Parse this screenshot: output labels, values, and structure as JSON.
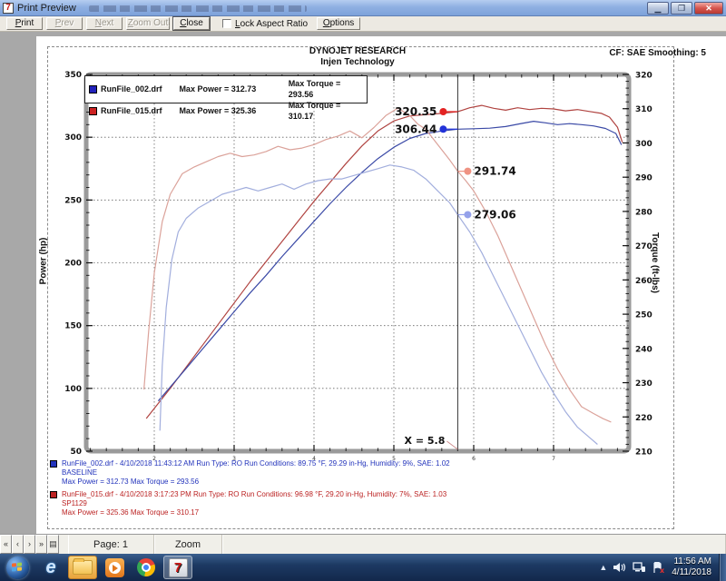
{
  "window": {
    "title": "Print Preview"
  },
  "toolbar": {
    "print": "Print",
    "prev": "Prev",
    "next": "Next",
    "zoom_out": "Zoom Out",
    "close": "Close",
    "lock_aspect": "Lock Aspect Ratio",
    "options": "Options"
  },
  "statusbar": {
    "nav_first": "«",
    "nav_prev": "‹",
    "nav_next": "›",
    "nav_last": "»",
    "nav_page_icon": "▤",
    "page": "Page: 1",
    "zoom": "Zoom"
  },
  "taskbar": {
    "time": "11:56 AM",
    "date": "4/11/2018"
  },
  "report": {
    "company": "DYNOJET RESEARCH",
    "subtitle": "Injen Technology",
    "correction": "CF: SAE  Smoothing: 5",
    "legend": [
      {
        "color": "#2222bb",
        "file": "RunFile_002.drf",
        "max_power": "Max Power = 312.73",
        "max_torque": "Max Torque = 293.56"
      },
      {
        "color": "#cc2222",
        "file": "RunFile_015.drf",
        "max_power": "Max Power = 325.36",
        "max_torque": "Max Torque = 310.17"
      }
    ],
    "runs": [
      {
        "color": "#2233bb",
        "line1": "RunFile_002.drf - 4/10/2018 11:43:12 AM  Run Type: RO  Run Conditions: 89.75 °F, 29.29 in-Hg,  Humidity:  9%, SAE: 1.02",
        "line2": "BASELINE",
        "line3": "Max Power = 312.73  Max Torque = 293.56"
      },
      {
        "color": "#bb2222",
        "line1": "RunFile_015.drf - 4/10/2018 3:17:23 PM  Run Type: RO  Run Conditions: 96.98 °F, 29.20 in-Hg,  Humidity:  7%, SAE: 1.03",
        "line2": "SP1129",
        "line3": "Max Power = 325.36  Max Torque = 310.17"
      }
    ]
  },
  "chart_data": {
    "type": "line",
    "title": "DYNOJET RESEARCH - Injen Technology",
    "ylabel_left": "Power (hp)",
    "ylabel_right": "Torque (ft-lbs)",
    "x_axis": {
      "min": 1.15,
      "max": 7.95,
      "major_ticks": [
        2,
        3,
        4,
        5,
        6,
        7
      ],
      "tick_labels": [
        "2",
        "3",
        "4",
        "5",
        "6",
        "7"
      ],
      "minor_step": 0.2
    },
    "power_axis": {
      "min": 50,
      "max": 350,
      "major_ticks": [
        350,
        300,
        250,
        200,
        150,
        100,
        50
      ],
      "minor_step": 10
    },
    "torque_axis": {
      "min": 210,
      "max": 320,
      "major_ticks": [
        320,
        310,
        300,
        290,
        280,
        270,
        260,
        250,
        240,
        230,
        220,
        210
      ],
      "minor_step": 2
    },
    "grid": {
      "vertical_at": [
        2,
        3,
        4,
        5,
        6,
        7
      ],
      "horizontal_power_at": [
        300,
        250,
        200,
        150,
        100
      ]
    },
    "cursor": {
      "x": 5.8,
      "label": "X = 5.8"
    },
    "markers": [
      {
        "label": "320.35",
        "axis": "power",
        "value": 320.35,
        "side": "left",
        "color": "#e32222"
      },
      {
        "label": "306.44",
        "axis": "power",
        "value": 306.44,
        "side": "left",
        "color": "#2233d8"
      },
      {
        "label": "291.74",
        "axis": "torque",
        "value": 291.74,
        "side": "right",
        "color": "#ef9383"
      },
      {
        "label": "279.06",
        "axis": "torque",
        "value": 279.06,
        "side": "right",
        "color": "#94a1ea"
      }
    ],
    "series": [
      {
        "name": "RunFile_015.drf Power",
        "axis": "power",
        "color": "#b04340",
        "points": [
          [
            1.9,
            76
          ],
          [
            2.05,
            88
          ],
          [
            2.2,
            100
          ],
          [
            2.4,
            117
          ],
          [
            2.6,
            134
          ],
          [
            2.8,
            151
          ],
          [
            3.0,
            168
          ],
          [
            3.2,
            185
          ],
          [
            3.4,
            201
          ],
          [
            3.6,
            217
          ],
          [
            3.8,
            233
          ],
          [
            4.0,
            249
          ],
          [
            4.2,
            264
          ],
          [
            4.4,
            279
          ],
          [
            4.6,
            293
          ],
          [
            4.8,
            305
          ],
          [
            5.0,
            313
          ],
          [
            5.2,
            317
          ],
          [
            5.4,
            318
          ],
          [
            5.6,
            319
          ],
          [
            5.8,
            320.35
          ],
          [
            5.95,
            323.5
          ],
          [
            6.1,
            325.36
          ],
          [
            6.25,
            323
          ],
          [
            6.4,
            321.5
          ],
          [
            6.55,
            323.5
          ],
          [
            6.7,
            322
          ],
          [
            6.85,
            323
          ],
          [
            7.0,
            322.5
          ],
          [
            7.15,
            321
          ],
          [
            7.3,
            322
          ],
          [
            7.45,
            320.5
          ],
          [
            7.6,
            319
          ],
          [
            7.7,
            316
          ],
          [
            7.8,
            308
          ],
          [
            7.86,
            296
          ]
        ]
      },
      {
        "name": "RunFile_002.drf Power",
        "axis": "power",
        "color": "#3a49a6",
        "points": [
          [
            2.05,
            90
          ],
          [
            2.2,
            101
          ],
          [
            2.4,
            116
          ],
          [
            2.6,
            131
          ],
          [
            2.8,
            146
          ],
          [
            3.0,
            161
          ],
          [
            3.2,
            176
          ],
          [
            3.4,
            190
          ],
          [
            3.6,
            205
          ],
          [
            3.8,
            219
          ],
          [
            4.0,
            233
          ],
          [
            4.2,
            247
          ],
          [
            4.4,
            260
          ],
          [
            4.6,
            272
          ],
          [
            4.8,
            283
          ],
          [
            5.0,
            292
          ],
          [
            5.2,
            299
          ],
          [
            5.4,
            303
          ],
          [
            5.6,
            305
          ],
          [
            5.8,
            306.44
          ],
          [
            6.0,
            306.8
          ],
          [
            6.2,
            307.2
          ],
          [
            6.4,
            308.5
          ],
          [
            6.6,
            311
          ],
          [
            6.75,
            312.73
          ],
          [
            6.9,
            311.5
          ],
          [
            7.05,
            310
          ],
          [
            7.2,
            310.8
          ],
          [
            7.35,
            310
          ],
          [
            7.5,
            309
          ],
          [
            7.65,
            307
          ],
          [
            7.78,
            303
          ],
          [
            7.85,
            294
          ]
        ]
      },
      {
        "name": "RunFile_015.drf Torque",
        "axis": "torque",
        "color": "#dba29a",
        "points": [
          [
            1.87,
            228
          ],
          [
            1.93,
            245
          ],
          [
            2.0,
            262
          ],
          [
            2.1,
            277
          ],
          [
            2.2,
            285
          ],
          [
            2.35,
            291
          ],
          [
            2.5,
            293
          ],
          [
            2.65,
            294.5
          ],
          [
            2.8,
            296
          ],
          [
            2.95,
            297
          ],
          [
            3.1,
            296
          ],
          [
            3.25,
            296.5
          ],
          [
            3.4,
            297.5
          ],
          [
            3.55,
            299
          ],
          [
            3.7,
            298
          ],
          [
            3.85,
            298.5
          ],
          [
            4.0,
            299.5
          ],
          [
            4.15,
            301
          ],
          [
            4.3,
            302
          ],
          [
            4.45,
            303.5
          ],
          [
            4.6,
            301.5
          ],
          [
            4.75,
            304.5
          ],
          [
            4.9,
            308
          ],
          [
            5.05,
            310.17
          ],
          [
            5.2,
            308
          ],
          [
            5.3,
            305.5
          ],
          [
            5.4,
            304
          ],
          [
            5.5,
            301
          ],
          [
            5.6,
            298
          ],
          [
            5.7,
            295
          ],
          [
            5.8,
            291.74
          ],
          [
            5.9,
            289
          ],
          [
            6.0,
            286
          ],
          [
            6.15,
            280
          ],
          [
            6.3,
            273
          ],
          [
            6.45,
            265
          ],
          [
            6.6,
            257
          ],
          [
            6.75,
            249
          ],
          [
            6.9,
            241
          ],
          [
            7.05,
            234
          ],
          [
            7.2,
            228
          ],
          [
            7.35,
            223
          ],
          [
            7.5,
            221
          ],
          [
            7.62,
            219.5
          ],
          [
            7.72,
            218.5
          ]
        ]
      },
      {
        "name": "RunFile_002.drf Torque",
        "axis": "torque",
        "color": "#a2aedd",
        "points": [
          [
            2.07,
            216
          ],
          [
            2.1,
            235
          ],
          [
            2.15,
            252
          ],
          [
            2.22,
            266
          ],
          [
            2.3,
            274
          ],
          [
            2.4,
            278
          ],
          [
            2.55,
            281
          ],
          [
            2.7,
            283
          ],
          [
            2.85,
            285
          ],
          [
            3.0,
            286
          ],
          [
            3.15,
            287
          ],
          [
            3.3,
            286
          ],
          [
            3.45,
            287
          ],
          [
            3.6,
            288
          ],
          [
            3.75,
            286.5
          ],
          [
            3.9,
            288
          ],
          [
            4.05,
            289
          ],
          [
            4.2,
            289.5
          ],
          [
            4.35,
            289.5
          ],
          [
            4.5,
            290.5
          ],
          [
            4.65,
            291.5
          ],
          [
            4.8,
            292.5
          ],
          [
            4.95,
            293.56
          ],
          [
            5.1,
            293
          ],
          [
            5.25,
            292
          ],
          [
            5.4,
            289.5
          ],
          [
            5.55,
            286
          ],
          [
            5.7,
            282.5
          ],
          [
            5.8,
            279.06
          ],
          [
            5.95,
            274
          ],
          [
            6.1,
            268
          ],
          [
            6.25,
            261
          ],
          [
            6.4,
            254
          ],
          [
            6.55,
            247
          ],
          [
            6.7,
            240
          ],
          [
            6.85,
            233
          ],
          [
            7.0,
            227
          ],
          [
            7.15,
            221.5
          ],
          [
            7.3,
            217
          ],
          [
            7.45,
            214
          ],
          [
            7.55,
            212
          ]
        ]
      }
    ]
  }
}
